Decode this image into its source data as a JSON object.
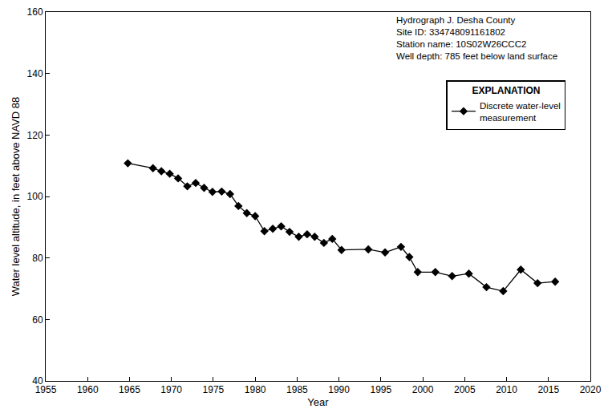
{
  "chart_data": {
    "type": "line",
    "x_label": "Year",
    "y_label": "Water level altitude, in feet above NAVD 88",
    "annotations": [
      "Hydrograph J. Desha County",
      "Site ID: 334748091161802",
      "Station name: 10S02W26CCC2",
      "Well depth: 785 feet below land surface"
    ],
    "legend_title": "EXPLANATION",
    "legend": "top right",
    "grid": false,
    "x": [
      1964.8,
      1967.8,
      1968.8,
      1969.8,
      1970.8,
      1971.9,
      1972.9,
      1973.9,
      1974.9,
      1976.0,
      1977.0,
      1978.0,
      1979.0,
      1980.0,
      1981.1,
      1982.1,
      1983.1,
      1984.1,
      1985.2,
      1986.2,
      1987.1,
      1988.2,
      1989.2,
      1990.3,
      1993.5,
      1995.5,
      1997.4,
      1998.4,
      1999.4,
      2001.5,
      2003.5,
      2005.5,
      2007.6,
      2009.6,
      2011.7,
      2013.7,
      2015.8
    ],
    "series": [
      {
        "name": "Discrete water-level measurement",
        "color": "#000000",
        "marker": "diamond",
        "line_style": "solid",
        "values": [
          110.8,
          109.2,
          108.2,
          107.4,
          105.9,
          103.3,
          104.4,
          102.8,
          101.5,
          101.6,
          100.8,
          96.9,
          94.6,
          93.6,
          88.7,
          89.5,
          90.3,
          88.5,
          86.9,
          87.7,
          86.9,
          84.9,
          86.2,
          82.6,
          82.8,
          81.8,
          83.6,
          80.3,
          75.4,
          75.4,
          74.1,
          74.9,
          70.5,
          69.2,
          76.2,
          71.8,
          72.3
        ]
      }
    ],
    "xlim": [
      1955,
      2020
    ],
    "xticks": [
      1955,
      1960,
      1965,
      1970,
      1975,
      1980,
      1985,
      1990,
      1995,
      2000,
      2005,
      2010,
      2015,
      2020
    ],
    "ylim": [
      40,
      160
    ],
    "yticks": [
      40,
      60,
      80,
      100,
      120,
      140,
      160
    ]
  }
}
